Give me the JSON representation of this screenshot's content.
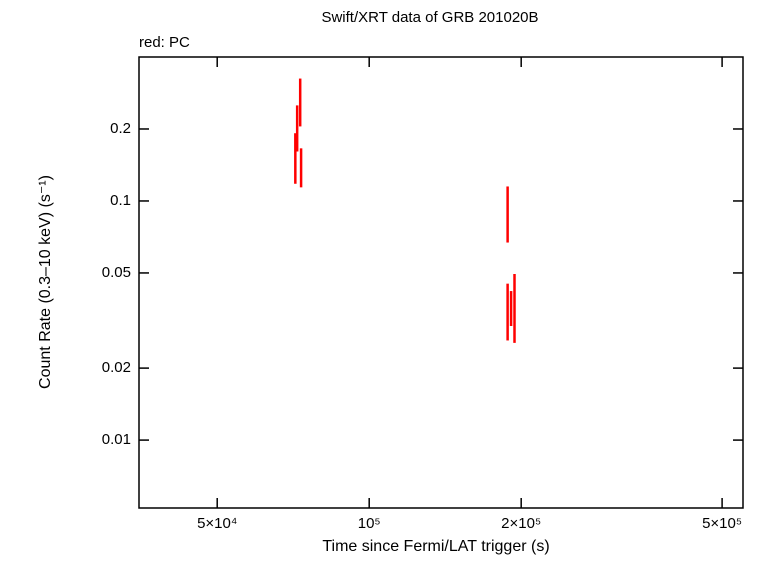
{
  "chart_data": {
    "type": "scatter",
    "title": "Swift/XRT data of GRB 201020B",
    "annotation": "red: PC",
    "x_label": "Time since Fermi/LAT trigger (s)",
    "y_label": "Count Rate (0.3–10 keV) (s⁻¹)",
    "log_x": true,
    "log_y": true,
    "xlim": [
      35000,
      550000
    ],
    "ylim": [
      0.0052,
      0.4
    ],
    "xticks": [
      {
        "value": 50000,
        "label": "5×10⁴"
      },
      {
        "value": 100000,
        "label": "10⁵"
      },
      {
        "value": 200000,
        "label": "2×10⁵"
      },
      {
        "value": 500000,
        "label": "5×10⁵"
      }
    ],
    "yticks": [
      0.01,
      0.02,
      0.05,
      0.1,
      0.2
    ],
    "series": [
      {
        "name": "PC",
        "color": "#ff0000",
        "x": [
          71400,
          72000,
          73000,
          73300,
          188000,
          188000,
          191000,
          194000
        ],
        "values": [
          0.155,
          0.206,
          0.265,
          0.14,
          0.091,
          0.0356,
          0.036,
          0.0375
        ],
        "yerr": [
          0.037,
          0.045,
          0.06,
          0.026,
          0.024,
          0.0095,
          0.006,
          0.012
        ]
      }
    ]
  }
}
